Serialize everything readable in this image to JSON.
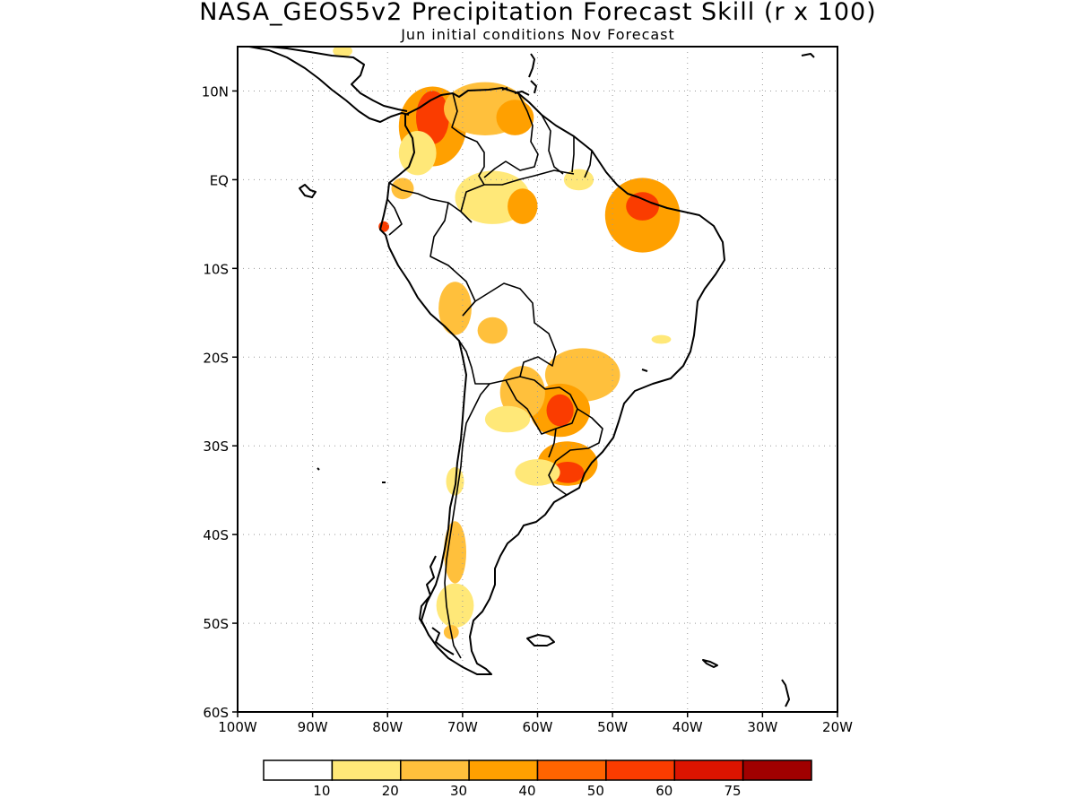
{
  "title": "NASA_GEOS5v2 Precipitation Forecast Skill (r x 100)",
  "subtitle": "Jun initial conditions  Nov Forecast",
  "chart_data": {
    "type": "heatmap",
    "map_region": "South America",
    "lon_range": [
      -100,
      -20
    ],
    "lat_range": [
      -60,
      15
    ],
    "x_ticks": [
      {
        "lon": -100,
        "label": "100W"
      },
      {
        "lon": -90,
        "label": "90W"
      },
      {
        "lon": -80,
        "label": "80W"
      },
      {
        "lon": -70,
        "label": "70W"
      },
      {
        "lon": -60,
        "label": "60W"
      },
      {
        "lon": -50,
        "label": "50W"
      },
      {
        "lon": -40,
        "label": "40W"
      },
      {
        "lon": -30,
        "label": "30W"
      },
      {
        "lon": -20,
        "label": "20W"
      }
    ],
    "y_ticks": [
      {
        "lat": 10,
        "label": "10N"
      },
      {
        "lat": 0,
        "label": "EQ"
      },
      {
        "lat": -10,
        "label": "10S"
      },
      {
        "lat": -20,
        "label": "20S"
      },
      {
        "lat": -30,
        "label": "30S"
      },
      {
        "lat": -40,
        "label": "40S"
      },
      {
        "lat": -50,
        "label": "50S"
      },
      {
        "lat": -60,
        "label": "60S"
      }
    ],
    "grid": true,
    "colorbar": {
      "colors": [
        "#ffffff",
        "#ffe878",
        "#ffc03c",
        "#ffa000",
        "#ff6400",
        "#fa3c00",
        "#dc1400",
        "#a00000"
      ],
      "labels": [
        "10",
        "20",
        "30",
        "40",
        "50",
        "60",
        "75"
      ]
    },
    "regions": [
      {
        "lon": -74,
        "lat": 6,
        "rlon": 4.5,
        "rlat": 4.5,
        "value": 32
      },
      {
        "lon": -74,
        "lat": 7,
        "rlon": 2.2,
        "rlat": 3,
        "value": 55
      },
      {
        "lon": -67,
        "lat": 8,
        "rlon": 5.5,
        "rlat": 3,
        "value": 28
      },
      {
        "lon": -63,
        "lat": 7,
        "rlon": 2.5,
        "rlat": 2,
        "value": 35
      },
      {
        "lon": -76,
        "lat": 3,
        "rlon": 2.5,
        "rlat": 2.5,
        "value": 18
      },
      {
        "lon": -78,
        "lat": -1,
        "rlon": 1.5,
        "rlat": 1.2,
        "value": 20
      },
      {
        "lon": -80.5,
        "lat": -5.3,
        "rlon": 0.7,
        "rlat": 0.6,
        "value": 52
      },
      {
        "lon": -66,
        "lat": -2,
        "rlon": 5,
        "rlat": 3,
        "value": 16
      },
      {
        "lon": -62,
        "lat": -3,
        "rlon": 2,
        "rlat": 2,
        "value": 30
      },
      {
        "lon": -54.5,
        "lat": 0,
        "rlon": 2,
        "rlat": 1.2,
        "value": 18
      },
      {
        "lon": -46,
        "lat": -4,
        "rlon": 5,
        "rlat": 4.2,
        "value": 32
      },
      {
        "lon": -46,
        "lat": -3,
        "rlon": 2.2,
        "rlat": 1.6,
        "value": 52
      },
      {
        "lon": -71,
        "lat": -14.5,
        "rlon": 2.2,
        "rlat": 3,
        "value": 26
      },
      {
        "lon": -66,
        "lat": -17,
        "rlon": 2,
        "rlat": 1.5,
        "value": 22
      },
      {
        "lon": -54,
        "lat": -22,
        "rlon": 5,
        "rlat": 3,
        "value": 26
      },
      {
        "lon": -57,
        "lat": -26,
        "rlon": 4,
        "rlat": 3,
        "value": 38
      },
      {
        "lon": -57,
        "lat": -26,
        "rlon": 1.8,
        "rlat": 1.8,
        "value": 55
      },
      {
        "lon": -62,
        "lat": -24,
        "rlon": 3,
        "rlat": 3,
        "value": 22
      },
      {
        "lon": -56,
        "lat": -32,
        "rlon": 4,
        "rlat": 2.5,
        "value": 32
      },
      {
        "lon": -56,
        "lat": -33,
        "rlon": 2.2,
        "rlat": 1.2,
        "value": 56
      },
      {
        "lon": -60,
        "lat": -33,
        "rlon": 3,
        "rlat": 1.5,
        "value": 18
      },
      {
        "lon": -64,
        "lat": -27,
        "rlon": 3,
        "rlat": 1.5,
        "value": 16
      },
      {
        "lon": -71,
        "lat": -42,
        "rlon": 1.5,
        "rlat": 3.5,
        "value": 20
      },
      {
        "lon": -71,
        "lat": -48,
        "rlon": 2.5,
        "rlat": 2.5,
        "value": 18
      },
      {
        "lon": -71.5,
        "lat": -51,
        "rlon": 1,
        "rlat": 0.8,
        "value": 28
      },
      {
        "lon": -71,
        "lat": -34,
        "rlon": 1.2,
        "rlat": 1.6,
        "value": 18
      },
      {
        "lon": -43.5,
        "lat": -18,
        "rlon": 1.3,
        "rlat": 0.5,
        "value": 16
      },
      {
        "lon": -86,
        "lat": 14.5,
        "rlon": 1.3,
        "rlat": 0.7,
        "value": 18
      }
    ]
  }
}
